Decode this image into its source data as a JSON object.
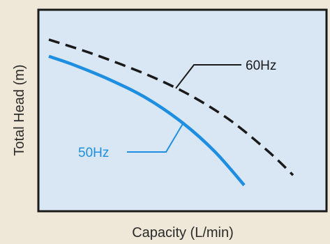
{
  "chart_data": {
    "type": "line",
    "xlabel": "Capacity (L/min)",
    "ylabel": "Total Head (m)",
    "xlim": [
      0,
      100
    ],
    "ylim": [
      0,
      100
    ],
    "grid": false,
    "legend": "inline callout labels",
    "series": [
      {
        "name": "60Hz",
        "style": "dashed",
        "color": "#1a1a1a",
        "points": [
          [
            0,
            93
          ],
          [
            15,
            86
          ],
          [
            30,
            78
          ],
          [
            45,
            69
          ],
          [
            60,
            58
          ],
          [
            75,
            44
          ],
          [
            90,
            26
          ],
          [
            100,
            12
          ]
        ]
      },
      {
        "name": "50Hz",
        "style": "solid",
        "color": "#1e8fe0",
        "points": [
          [
            0,
            83
          ],
          [
            10,
            78
          ],
          [
            25,
            69
          ],
          [
            40,
            58
          ],
          [
            55,
            43
          ],
          [
            68,
            26
          ],
          [
            80,
            6
          ]
        ]
      }
    ]
  },
  "colors": {
    "plot_background": "#d9e6f3",
    "page_background": "#efe8d8",
    "frame": "#1a1a1a"
  }
}
